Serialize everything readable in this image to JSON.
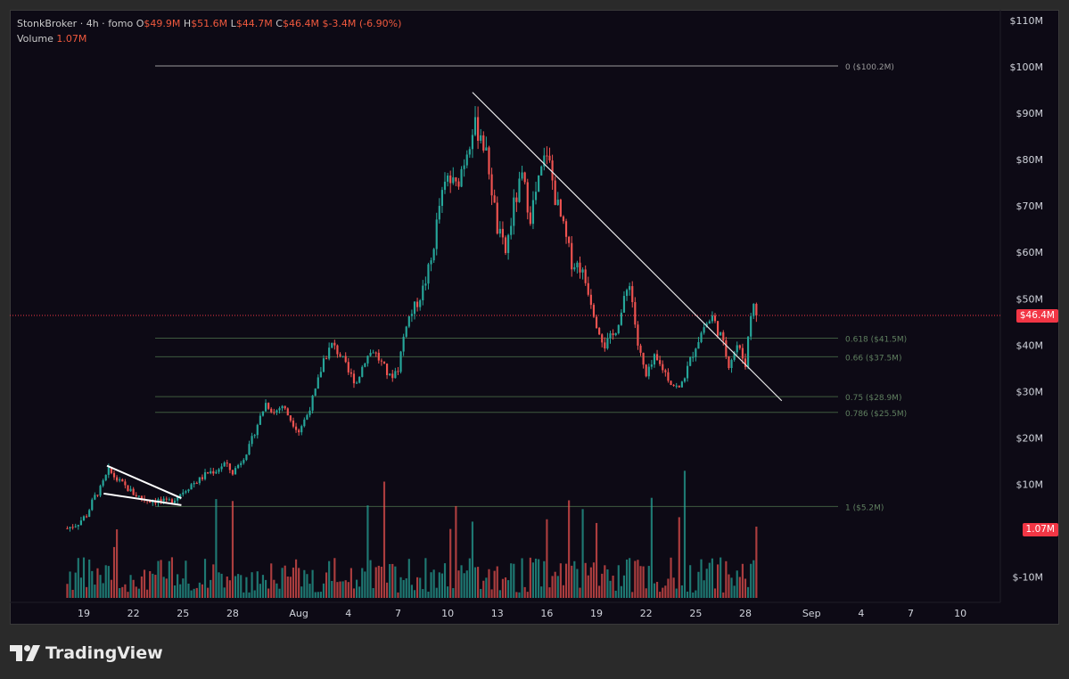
{
  "header": {
    "symbol": "StonkBroker",
    "sep1": " · ",
    "interval": "4h",
    "sep2": " · ",
    "exchange": "fomo",
    "o_label": "O",
    "o_value": "$49.9M",
    "h_label": "H",
    "h_value": "$51.6M",
    "l_label": "L",
    "l_value": "$44.7M",
    "c_label": "C",
    "c_value": "$46.4M",
    "change": "$-3.4M (-6.90%)",
    "volume_label": "Volume",
    "volume_value": "1.07M"
  },
  "price_tags": {
    "last_price": "$46.4M",
    "last_volume": "1.07M"
  },
  "footer": {
    "brand": "TradingView"
  },
  "colors": {
    "up": "#22ab94",
    "down": "#f7525f",
    "up_candle": "#26a69a",
    "down_candle": "#ef5350",
    "last_price_tag": "#f23645",
    "volume_tag": "#f23645",
    "background": "#0d0a15",
    "fib_line": "#4a6a4a"
  },
  "chart_data": {
    "type": "candlestick",
    "y_axis": {
      "ticks": [
        "$110M",
        "$100M",
        "$90M",
        "$80M",
        "$70M",
        "$60M",
        "$50M",
        "$40M",
        "$30M",
        "$20M",
        "$10M",
        "$-10M"
      ],
      "tick_values": [
        110,
        100,
        90,
        80,
        70,
        60,
        50,
        40,
        30,
        20,
        10,
        -10
      ],
      "ylim": [
        -12,
        115
      ]
    },
    "x_axis": {
      "ticks": [
        "19",
        "22",
        "25",
        "28",
        "Aug",
        "4",
        "7",
        "10",
        "13",
        "16",
        "19",
        "22",
        "25",
        "28",
        "Sep",
        "4",
        "7",
        "10"
      ],
      "tick_days": [
        19,
        22,
        25,
        28,
        32,
        35,
        38,
        41,
        44,
        47,
        50,
        53,
        56,
        59,
        63,
        66,
        69,
        72
      ],
      "xlim": [
        17.8,
        75
      ]
    },
    "last_price": 46.4,
    "fib_levels": [
      {
        "label": "0 ($100.2M)",
        "value": 100.2
      },
      {
        "label": "0.618 ($41.5M)",
        "value": 41.5
      },
      {
        "label": "0.66 ($37.5M)",
        "value": 37.5
      },
      {
        "label": "0.75 ($28.9M)",
        "value": 28.9
      },
      {
        "label": "0.786 ($25.5M)",
        "value": 25.5
      },
      {
        "label": "1 ($5.2M)",
        "value": 5.2
      }
    ],
    "trendlines": [
      {
        "from": [
          42.5,
          94.5
        ],
        "to": [
          61.2,
          28.0
        ]
      }
    ],
    "wedge": [
      {
        "from": [
          20.4,
          14.0
        ],
        "to": [
          24.9,
          7.0
        ]
      },
      {
        "from": [
          20.2,
          8.0
        ],
        "to": [
          24.9,
          5.5
        ]
      }
    ],
    "price_path": [
      [
        18.0,
        0.5
      ],
      [
        18.6,
        1.5
      ],
      [
        19.2,
        3.5
      ],
      [
        19.6,
        7.0
      ],
      [
        20.0,
        9.0
      ],
      [
        20.5,
        13.0
      ],
      [
        21.0,
        11.0
      ],
      [
        21.5,
        9.5
      ],
      [
        22.0,
        8.0
      ],
      [
        22.5,
        7.0
      ],
      [
        23.0,
        6.5
      ],
      [
        23.5,
        6.5
      ],
      [
        24.0,
        6.0
      ],
      [
        24.5,
        7.0
      ],
      [
        25.0,
        8.5
      ],
      [
        25.5,
        10.0
      ],
      [
        26.0,
        11.0
      ],
      [
        26.5,
        12.5
      ],
      [
        27.0,
        13.0
      ],
      [
        27.5,
        14.5
      ],
      [
        28.0,
        12.5
      ],
      [
        28.5,
        15.0
      ],
      [
        29.0,
        18.0
      ],
      [
        29.5,
        23.0
      ],
      [
        30.0,
        27.5
      ],
      [
        30.5,
        25.5
      ],
      [
        31.0,
        27.0
      ],
      [
        31.5,
        24.0
      ],
      [
        32.0,
        21.5
      ],
      [
        32.5,
        25.0
      ],
      [
        33.0,
        30.0
      ],
      [
        33.5,
        37.0
      ],
      [
        34.0,
        40.0
      ],
      [
        34.5,
        38.0
      ],
      [
        35.0,
        34.0
      ],
      [
        35.5,
        32.0
      ],
      [
        36.0,
        37.0
      ],
      [
        36.5,
        39.0
      ],
      [
        37.0,
        36.0
      ],
      [
        37.5,
        33.0
      ],
      [
        38.0,
        35.0
      ],
      [
        38.5,
        45.0
      ],
      [
        39.0,
        48.0
      ],
      [
        39.5,
        52.0
      ],
      [
        40.0,
        58.0
      ],
      [
        40.5,
        70.0
      ],
      [
        41.0,
        76.0
      ],
      [
        41.5,
        74.0
      ],
      [
        42.0,
        80.0
      ],
      [
        42.5,
        87.0
      ],
      [
        43.0,
        86.0
      ],
      [
        43.5,
        78.0
      ],
      [
        44.0,
        65.0
      ],
      [
        44.5,
        60.0
      ],
      [
        45.0,
        70.0
      ],
      [
        45.5,
        76.0
      ],
      [
        46.0,
        68.0
      ],
      [
        46.5,
        75.0
      ],
      [
        47.0,
        82.0
      ],
      [
        47.5,
        72.0
      ],
      [
        48.0,
        65.0
      ],
      [
        48.5,
        58.0
      ],
      [
        49.0,
        57.0
      ],
      [
        49.5,
        52.0
      ],
      [
        50.0,
        45.0
      ],
      [
        50.5,
        40.0
      ],
      [
        51.0,
        42.0
      ],
      [
        51.5,
        47.0
      ],
      [
        52.0,
        54.0
      ],
      [
        52.5,
        40.0
      ],
      [
        53.0,
        33.0
      ],
      [
        53.5,
        37.0
      ],
      [
        54.0,
        35.0
      ],
      [
        54.5,
        32.0
      ],
      [
        55.0,
        30.5
      ],
      [
        55.5,
        35.0
      ],
      [
        56.0,
        40.0
      ],
      [
        56.5,
        44.0
      ],
      [
        57.0,
        46.0
      ],
      [
        57.5,
        42.0
      ],
      [
        58.0,
        36.0
      ],
      [
        58.5,
        40.0
      ],
      [
        59.0,
        36.0
      ],
      [
        59.3,
        46.0
      ],
      [
        59.5,
        49.9
      ],
      [
        59.7,
        46.4
      ]
    ],
    "volume_scale_max": 100
  }
}
